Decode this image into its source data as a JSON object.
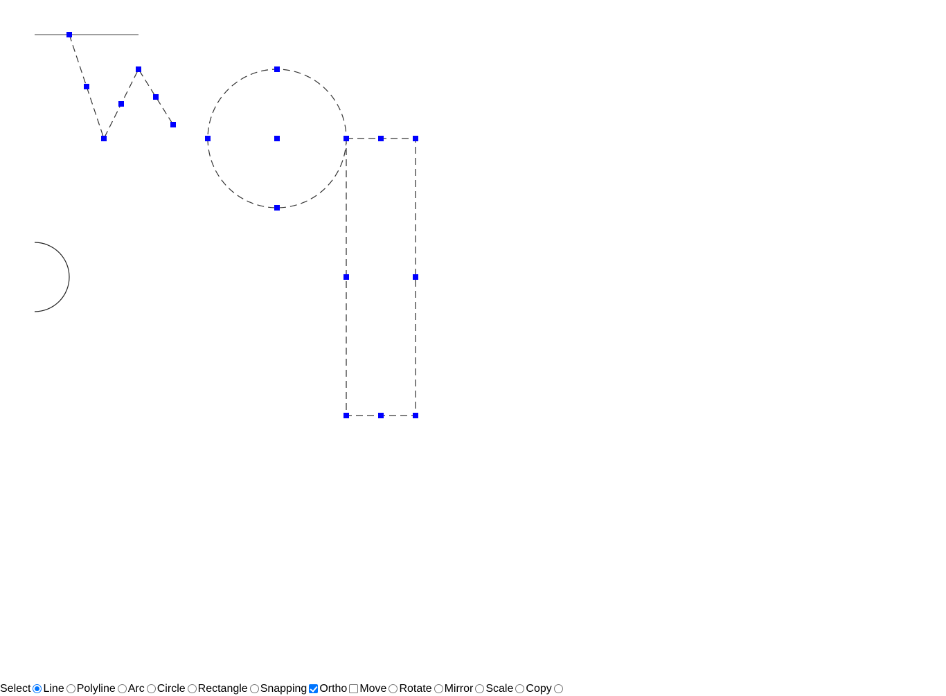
{
  "toolbar": {
    "items": [
      {
        "label": "Select",
        "control": "radio",
        "checked": true
      },
      {
        "label": "Line",
        "control": "radio",
        "checked": false
      },
      {
        "label": "Polyline",
        "control": "radio",
        "checked": false
      },
      {
        "label": "Arc",
        "control": "radio",
        "checked": false
      },
      {
        "label": "Circle",
        "control": "radio",
        "checked": false
      },
      {
        "label": "Rectangle",
        "control": "radio",
        "checked": false
      },
      {
        "label": "Snapping",
        "control": "checkbox",
        "checked": true
      },
      {
        "label": "Ortho",
        "control": "checkbox",
        "checked": false
      },
      {
        "label": "Move",
        "control": "radio",
        "checked": false
      },
      {
        "label": "Rotate",
        "control": "radio",
        "checked": false
      },
      {
        "label": "Mirror",
        "control": "radio",
        "checked": false
      },
      {
        "label": "Scale",
        "control": "radio",
        "checked": false
      },
      {
        "label": "Copy",
        "control": "radio",
        "checked": false
      }
    ]
  },
  "colors": {
    "grip": "#0000ff",
    "stroke": "#555555",
    "accent": "#0075ff"
  }
}
